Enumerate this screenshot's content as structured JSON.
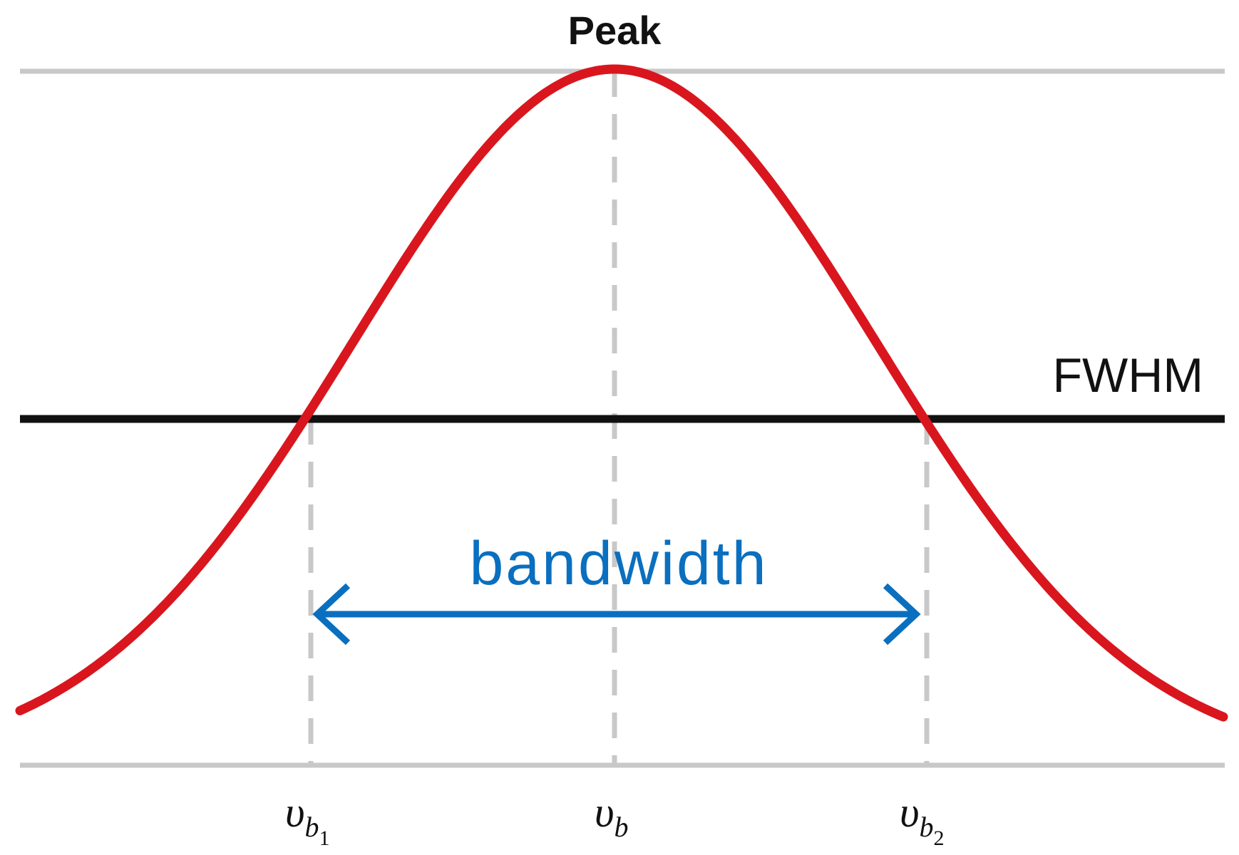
{
  "labels": {
    "peak": "Peak",
    "fwhm": "FWHM",
    "bandwidth": "bandwidth",
    "center_symbol": "υ",
    "center_subscript": "b",
    "left_symbol": "υ",
    "left_subscript": "b",
    "left_sub_index": "1",
    "right_symbol": "υ",
    "right_subscript": "b",
    "right_sub_index": "2"
  },
  "colors": {
    "curve": "#d9161e",
    "fwhm_line": "#111111",
    "guide_lines": "#c8c8c8",
    "bandwidth_arrow": "#0a6fbf",
    "text_dark": "#111111"
  }
}
